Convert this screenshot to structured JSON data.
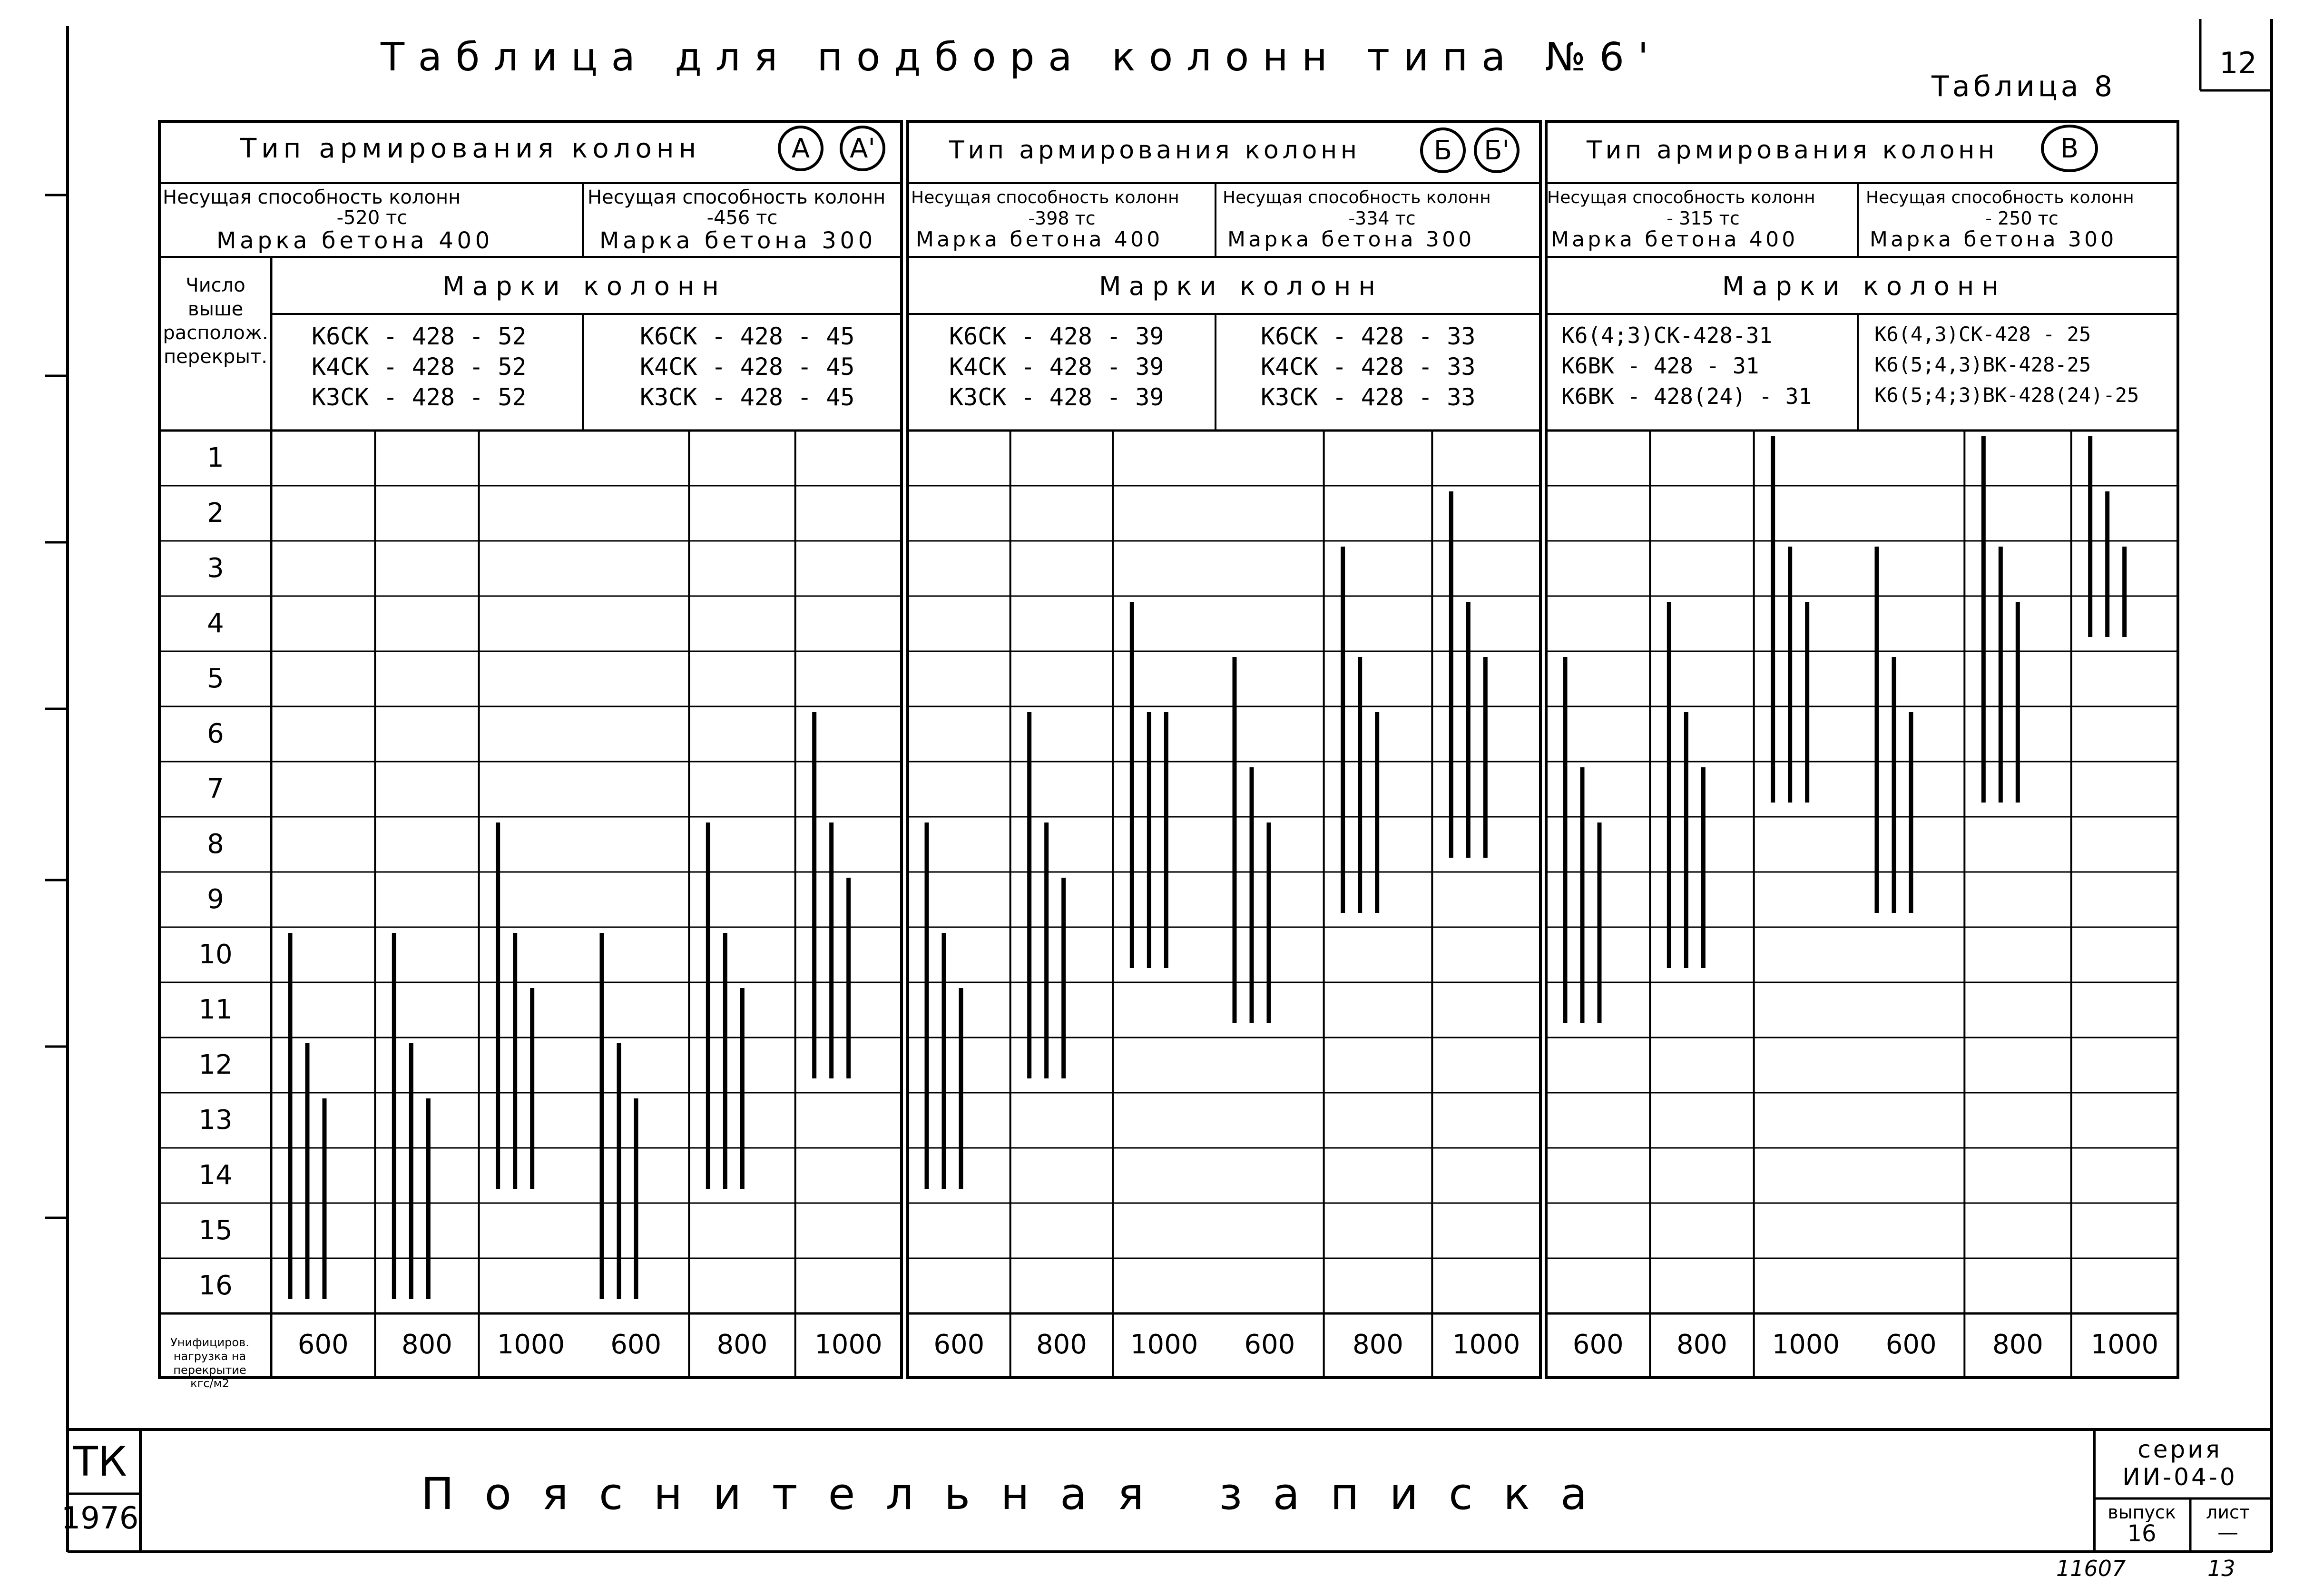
{
  "sheet": {
    "title": "Таблица для подбора колонн типа №6'",
    "table_no": "Таблица 8",
    "corner_no": "12"
  },
  "table": {
    "groups": [
      {
        "header": "Тип армирования колонн",
        "marks": [
          "А",
          "А'"
        ],
        "sub": [
          {
            "capacity": "Несущая способность колонн",
            "value": "-520 тс",
            "concrete": "Марка бетона 400"
          },
          {
            "capacity": "Несущая способность колонн",
            "value": "-456 тс",
            "concrete": "Марка бетона 300"
          }
        ],
        "marki_label": "Марки колонн",
        "col_marks": [
          [
            "К6СК - 428 - 52",
            "К4СК - 428 - 52",
            "К3СК - 428 - 52"
          ],
          [
            "К6СК - 428 - 45",
            "К4СК - 428 - 45",
            "К3СК - 428 - 45"
          ]
        ]
      },
      {
        "header": "Тип армирования колонн",
        "marks": [
          "Б",
          "Б'"
        ],
        "sub": [
          {
            "capacity": "Несущая способность колонн",
            "value": "-398 тс",
            "concrete": "Марка бетона 400"
          },
          {
            "capacity": "Несущая способность колонн",
            "value": "-334 тс",
            "concrete": "Марка бетона 300"
          }
        ],
        "marki_label": "Марки колонн",
        "col_marks": [
          [
            "К6СК - 428 - 39",
            "К4СК - 428 - 39",
            "К3СК - 428 - 39"
          ],
          [
            "К6СК - 428 - 33",
            "К4СК - 428 - 33",
            "К3СК - 428 - 33"
          ]
        ]
      },
      {
        "header": "Тип армирования колонн",
        "marks": [
          "В"
        ],
        "sub": [
          {
            "capacity": "Несущая способность колонн",
            "value": "- 315 тс",
            "concrete": "Марка бетона 400"
          },
          {
            "capacity": "Несущая способность колонн",
            "value": "- 250 тс",
            "concrete": "Марка бетона 300"
          }
        ],
        "marki_label": "Марки колонн",
        "col_marks": [
          [
            "К6(4;3)СК-428-31",
            "К6ВК - 428 - 31",
            "К6ВК - 428(24) - 31"
          ],
          [
            "К6(4,3)СК-428 - 25",
            "К6(5;4,3)ВК-428-25",
            "К6(5;4;3)ВК-428(24)-25"
          ]
        ]
      }
    ],
    "row_header": "Число выше располож. перекрыт.",
    "floors": [
      "1",
      "2",
      "3",
      "4",
      "5",
      "6",
      "7",
      "8",
      "9",
      "10",
      "11",
      "12",
      "13",
      "14",
      "15",
      "16"
    ],
    "load_label": [
      "Унифициров.",
      "нагрузка на",
      "перекрытие",
      "кгс/м2"
    ],
    "loads": [
      "600",
      "800",
      "1000",
      "600",
      "800",
      "1000",
      "600",
      "800",
      "1000",
      "600",
      "800",
      "1000",
      "600",
      "800",
      "1000",
      "600",
      "800",
      "1000"
    ],
    "ranges": [
      [
        [
          10,
          16
        ],
        [
          12,
          16
        ],
        [
          13,
          16
        ]
      ],
      [
        [
          10,
          16
        ],
        [
          12,
          16
        ],
        [
          13,
          16
        ]
      ],
      [
        [
          8,
          14
        ],
        [
          10,
          14
        ],
        [
          11,
          14
        ]
      ],
      [
        [
          10,
          16
        ],
        [
          12,
          16
        ],
        [
          13,
          16
        ]
      ],
      [
        [
          8,
          14
        ],
        [
          10,
          14
        ],
        [
          11,
          14
        ]
      ],
      [
        [
          6,
          12
        ],
        [
          8,
          12
        ],
        [
          9,
          12
        ]
      ],
      [
        [
          8,
          14
        ],
        [
          10,
          14
        ],
        [
          11,
          14
        ]
      ],
      [
        [
          6,
          12
        ],
        [
          8,
          12
        ],
        [
          9,
          12
        ]
      ],
      [
        [
          4,
          10
        ],
        [
          6,
          10
        ],
        [
          6,
          10
        ]
      ],
      [
        [
          5,
          11
        ],
        [
          7,
          11
        ],
        [
          8,
          11
        ]
      ],
      [
        [
          3,
          9
        ],
        [
          5,
          9
        ],
        [
          6,
          9
        ]
      ],
      [
        [
          2,
          8
        ],
        [
          4,
          8
        ],
        [
          5,
          8
        ]
      ],
      [
        [
          5,
          11
        ],
        [
          7,
          11
        ],
        [
          8,
          11
        ]
      ],
      [
        [
          4,
          10
        ],
        [
          6,
          10
        ],
        [
          7,
          10
        ]
      ],
      [
        [
          1,
          7
        ],
        [
          3,
          7
        ],
        [
          4,
          7
        ]
      ],
      [
        [
          3,
          9
        ],
        [
          5,
          9
        ],
        [
          6,
          9
        ]
      ],
      [
        [
          1,
          7
        ],
        [
          3,
          7
        ],
        [
          4,
          7
        ]
      ],
      [
        [
          1,
          4
        ],
        [
          2,
          4
        ],
        [
          3,
          4
        ]
      ]
    ]
  },
  "title_block": {
    "org": "ТК",
    "year": "1976",
    "name": "Пояснительная записка",
    "series_label": "серия",
    "series": "ИИ-04-0",
    "issue_label": "выпуск",
    "issue": "16",
    "sheet_label": "лист",
    "sheet": "—",
    "archive": "11607",
    "page": "13"
  }
}
